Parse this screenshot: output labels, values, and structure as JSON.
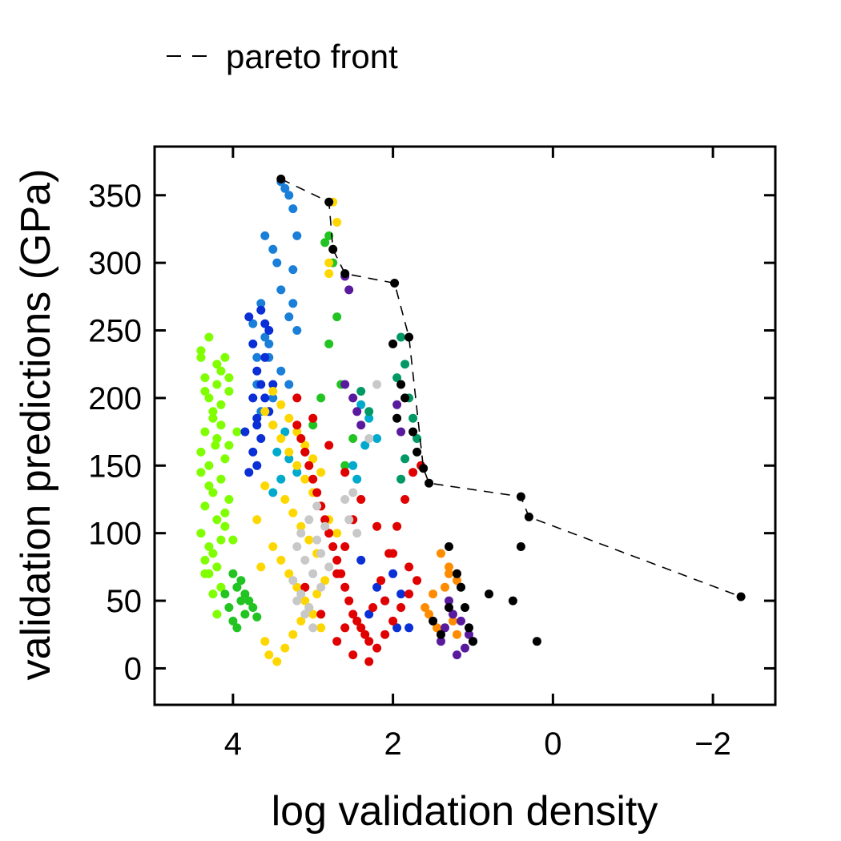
{
  "chart_data": {
    "type": "scatter",
    "title": "",
    "xlabel": "log validation density",
    "ylabel": "validation predictions (GPa)",
    "x_reversed": true,
    "xlim": [
      4.98,
      -2.78
    ],
    "ylim": [
      -27,
      386
    ],
    "xticks": [
      4,
      2,
      0,
      -2
    ],
    "xtick_labels": [
      "4",
      "2",
      "0",
      "−2"
    ],
    "yticks": [
      0,
      50,
      100,
      150,
      200,
      250,
      300,
      350
    ],
    "ytick_labels": [
      "0",
      "50",
      "100",
      "150",
      "200",
      "250",
      "300",
      "350"
    ],
    "grid": false,
    "legend": {
      "position": "top-left",
      "entries": [
        {
          "label": "pareto front",
          "style": "dashed-black"
        }
      ]
    },
    "pareto_front": {
      "name": "pareto front",
      "color": "#000000",
      "x": [
        3.4,
        2.8,
        2.75,
        2.6,
        1.98,
        1.8,
        1.62,
        1.55,
        0.4,
        0.3,
        -2.35
      ],
      "y": [
        362,
        345,
        310,
        292,
        285,
        245,
        148,
        137,
        127,
        112,
        53
      ]
    },
    "series": [
      {
        "color": "#7fff00",
        "x": [
          4.4,
          4.35,
          4.2,
          4.3,
          4.1,
          4.25,
          4.15,
          4.35,
          4.4,
          4.2,
          4.05,
          4.3,
          4.15,
          4.25,
          4.1,
          4.35,
          4.2,
          4.4,
          4.05,
          4.3,
          4.15,
          4.25,
          4.1,
          4.35,
          4.2,
          4.3,
          4.15,
          4.4,
          4.05,
          4.25,
          4.2,
          4.3,
          4.1,
          4.35,
          4.15,
          4.25,
          4.4,
          4.2,
          4.05,
          4.3,
          4.15,
          4.35,
          3.95,
          4.0,
          4.22
        ],
        "y": [
          235,
          215,
          225,
          200,
          230,
          185,
          195,
          175,
          160,
          170,
          205,
          150,
          140,
          130,
          155,
          120,
          110,
          100,
          125,
          90,
          95,
          85,
          115,
          70,
          75,
          245,
          180,
          145,
          165,
          190,
          210,
          135,
          105,
          80,
          60,
          55,
          230,
          40,
          215,
          70,
          220,
          205,
          175,
          95,
          165
        ]
      },
      {
        "color": "#22c422",
        "x": [
          4.0,
          3.95,
          3.9,
          4.05,
          3.85,
          4.0,
          3.95,
          3.9,
          3.85,
          4.1,
          3.75,
          3.8,
          3.7,
          2.8,
          2.85,
          2.75,
          2.8,
          2.65,
          2.7,
          3.0,
          3.1,
          2.6,
          2.5,
          2.9
        ],
        "y": [
          70,
          60,
          50,
          45,
          40,
          35,
          30,
          65,
          55,
          55,
          45,
          50,
          38,
          320,
          315,
          300,
          240,
          210,
          260,
          180,
          160,
          150,
          170,
          200
        ]
      },
      {
        "color": "#1a7fd8",
        "x": [
          3.4,
          3.35,
          3.3,
          3.25,
          3.2,
          3.45,
          3.6,
          3.5,
          3.4,
          3.25,
          3.3,
          3.2,
          3.55,
          3.65,
          3.7,
          3.4,
          3.3,
          3.5,
          3.6,
          3.25,
          3.75,
          3.7,
          3.55,
          3.65
        ],
        "y": [
          360,
          355,
          350,
          340,
          320,
          300,
          320,
          310,
          280,
          295,
          260,
          250,
          240,
          270,
          230,
          220,
          210,
          200,
          245,
          270,
          255,
          210,
          230,
          190
        ]
      },
      {
        "color": "#0a2fd6",
        "x": [
          3.8,
          3.75,
          3.7,
          3.65,
          3.6,
          3.55,
          3.7,
          3.65,
          3.75,
          3.6,
          3.7,
          3.8,
          3.55,
          3.65,
          3.5,
          3.7,
          3.75,
          3.6,
          3.85,
          2.2,
          2.1,
          2.3,
          1.95,
          2.0,
          1.9,
          2.4,
          1.8
        ],
        "y": [
          260,
          240,
          220,
          210,
          200,
          190,
          180,
          170,
          160,
          230,
          150,
          145,
          250,
          265,
          210,
          185,
          200,
          255,
          175,
          60,
          50,
          40,
          30,
          70,
          55,
          80,
          30
        ]
      },
      {
        "color": "#00aacc",
        "x": [
          3.5,
          3.45,
          3.4,
          3.35,
          3.3,
          3.5,
          2.4,
          2.3,
          2.2,
          2.5,
          2.35,
          3.2,
          3.1,
          2.45
        ],
        "y": [
          180,
          160,
          140,
          175,
          155,
          130,
          195,
          185,
          170,
          150,
          165,
          145,
          160,
          140
        ]
      },
      {
        "color": "#ffd700",
        "x": [
          3.6,
          3.5,
          3.4,
          3.3,
          3.2,
          3.1,
          3.0,
          2.9,
          2.8,
          2.7,
          3.5,
          3.4,
          3.3,
          3.2,
          3.1,
          3.0,
          2.9,
          3.6,
          3.55,
          3.45,
          3.35,
          3.25,
          3.15,
          3.05,
          2.95,
          2.85,
          3.5,
          3.4,
          3.3,
          3.2,
          3.1,
          3.0,
          2.9,
          3.6,
          3.35,
          3.25,
          3.15,
          3.05,
          2.95,
          2.8,
          2.75,
          2.7,
          2.8,
          3.7,
          3.65
        ],
        "y": [
          190,
          180,
          170,
          160,
          150,
          140,
          130,
          120,
          110,
          100,
          90,
          80,
          70,
          60,
          50,
          40,
          30,
          20,
          10,
          5,
          15,
          25,
          35,
          45,
          55,
          65,
          205,
          195,
          185,
          175,
          165,
          155,
          145,
          135,
          125,
          115,
          105,
          95,
          85,
          292,
          345,
          330,
          300,
          110,
          75
        ]
      },
      {
        "color": "#ff8c00",
        "x": [
          1.4,
          1.3,
          1.2,
          1.5,
          1.6,
          1.35,
          1.25,
          1.45,
          1.55,
          1.3,
          1.2
        ],
        "y": [
          85,
          75,
          65,
          55,
          45,
          60,
          35,
          30,
          40,
          70,
          25
        ]
      },
      {
        "color": "#e00000",
        "x": [
          3.2,
          3.1,
          3.0,
          2.9,
          2.8,
          2.7,
          2.6,
          2.5,
          2.4,
          2.3,
          2.2,
          2.1,
          2.0,
          1.9,
          1.8,
          1.7,
          3.15,
          3.05,
          2.95,
          2.85,
          2.75,
          2.65,
          2.55,
          2.45,
          2.35,
          2.25,
          2.15,
          2.05,
          1.95,
          1.85,
          1.75,
          1.65,
          3.2,
          3.0,
          2.8,
          2.6,
          2.4,
          2.2,
          2.0,
          1.8,
          3.1,
          2.9,
          2.7,
          2.5,
          2.3,
          2.1,
          2.6,
          2.7,
          2.5,
          2.6
        ],
        "y": [
          180,
          160,
          140,
          120,
          100,
          80,
          60,
          40,
          30,
          20,
          15,
          25,
          35,
          45,
          55,
          65,
          170,
          150,
          130,
          110,
          90,
          70,
          50,
          35,
          25,
          45,
          65,
          85,
          105,
          125,
          145,
          150,
          200,
          185,
          165,
          145,
          125,
          105,
          85,
          75,
          60,
          40,
          20,
          10,
          5,
          50,
          90,
          70,
          110,
          30
        ]
      },
      {
        "color": "#c8c8c8",
        "x": [
          3.2,
          3.1,
          3.0,
          2.9,
          3.15,
          3.05,
          2.95,
          3.2,
          3.1,
          3.0,
          2.9,
          2.8,
          2.5,
          2.45,
          2.55,
          2.2,
          2.3,
          3.25,
          3.15,
          3.05,
          2.95,
          2.85,
          2.6
        ],
        "y": [
          90,
          80,
          70,
          60,
          100,
          110,
          120,
          50,
          40,
          30,
          85,
          75,
          130,
          100,
          110,
          210,
          170,
          65,
          55,
          45,
          95,
          105,
          125
        ]
      },
      {
        "color": "#009966",
        "x": [
          1.9,
          1.85,
          1.95,
          1.8,
          1.75,
          1.7,
          1.85,
          1.9,
          2.4,
          2.3
        ],
        "y": [
          245,
          225,
          215,
          200,
          185,
          170,
          155,
          140,
          205,
          190
        ]
      },
      {
        "color": "#5a1a9e",
        "x": [
          2.6,
          2.55,
          2.6,
          2.5,
          2.45,
          2.4,
          1.95,
          1.9,
          1.4,
          1.2,
          1.1,
          1.05,
          1.0,
          1.35,
          1.25,
          1.3,
          1.15
        ],
        "y": [
          290,
          280,
          210,
          200,
          190,
          180,
          195,
          175,
          20,
          10,
          15,
          25,
          20,
          30,
          40,
          50,
          35
        ]
      },
      {
        "color": "#000000",
        "x": [
          2.0,
          1.9,
          1.85,
          1.95,
          1.75,
          1.7,
          1.3,
          1.2,
          1.15,
          1.1,
          1.05,
          1.0,
          0.8,
          0.5,
          0.4,
          0.2,
          1.5,
          1.4,
          1.3
        ],
        "y": [
          240,
          210,
          200,
          185,
          175,
          160,
          90,
          70,
          60,
          45,
          30,
          20,
          55,
          50,
          90,
          20,
          35,
          25,
          45
        ]
      }
    ]
  }
}
